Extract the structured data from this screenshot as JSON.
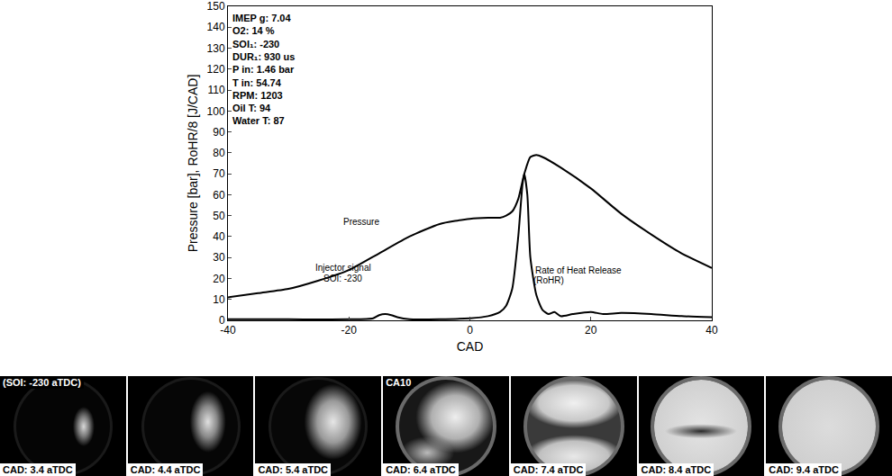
{
  "chart_data": {
    "type": "line",
    "x_label": "CAD",
    "y_label": "Pressure [bar], RoHR/8 [J/CAD]",
    "xlim": [
      -40,
      40
    ],
    "xticks": [
      -40,
      -20,
      0,
      20,
      40
    ],
    "ylim": [
      0,
      150
    ],
    "yticks": [
      0,
      10,
      20,
      30,
      40,
      50,
      60,
      70,
      80,
      90,
      100,
      110,
      120,
      130,
      140,
      150
    ],
    "grid": false,
    "info": [
      "IMEP g: 7.04",
      "O2: 14 %",
      "SOI₁: -230",
      "DUR₁: 930 us",
      "P in: 1.46 bar",
      "T in: 54.74",
      "RPM: 1203",
      "Oil T: 94",
      "Water T: 87"
    ],
    "annotations": [
      {
        "text": "Pressure",
        "x": -18,
        "y": 47
      },
      {
        "text": "Injector signal",
        "x": -21,
        "y": 25
      },
      {
        "text": "SOI: -230",
        "x": -21,
        "y": 20
      },
      {
        "text": "Rate of Heat Release",
        "x": 18,
        "y": 24
      },
      {
        "text": "(RoHR)",
        "x": 13,
        "y": 19
      }
    ],
    "series": [
      {
        "color": "#000000",
        "x": [
          -40,
          -35,
          -30,
          -25,
          -20,
          -15,
          -10,
          -5,
          0,
          3,
          5,
          6,
          7,
          8,
          9,
          10,
          11,
          12,
          15,
          20,
          25,
          30,
          35,
          40
        ],
        "values": [
          11,
          13,
          15,
          19,
          24,
          32,
          40,
          46,
          48.5,
          49,
          49,
          50,
          52,
          58,
          70,
          78,
          79,
          78,
          73,
          63,
          51,
          41,
          32,
          25
        ]
      },
      {
        "color": "#000000",
        "x": [
          -40,
          -30,
          -20,
          -16,
          -15,
          -14,
          -13,
          -12,
          -10,
          -5,
          0,
          3,
          5,
          6,
          7,
          8,
          8.7,
          9,
          9.5,
          10,
          11,
          12,
          13,
          14,
          15,
          17,
          20,
          22,
          25,
          30,
          35,
          40
        ],
        "values": [
          0.5,
          0.5,
          0.5,
          1,
          2.5,
          3,
          2.5,
          1.5,
          0.5,
          0.5,
          1,
          2,
          4,
          7,
          15,
          40,
          65,
          70,
          60,
          30,
          12,
          5,
          3,
          4,
          2,
          3,
          4,
          3,
          3.5,
          3,
          2,
          1.5
        ]
      }
    ]
  },
  "images": [
    {
      "tag": "(SOI: -230 aTDC)",
      "caption": "CAD: 3.4 aTDC"
    },
    {
      "caption": "CAD: 4.4 aTDC"
    },
    {
      "caption": "CAD: 5.4 aTDC"
    },
    {
      "tag": "CA10",
      "caption": "CAD: 6.4 aTDC"
    },
    {
      "caption": "CAD: 7.4 aTDC"
    },
    {
      "caption": "CAD: 8.4 aTDC"
    },
    {
      "caption": "CAD: 9.4 aTDC"
    }
  ]
}
